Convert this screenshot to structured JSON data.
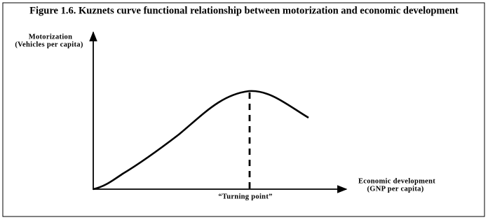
{
  "title": "Figure 1.6. Kuznets curve functional relationship between motorization and economic development",
  "y_axis": {
    "label": "Motorization",
    "sublabel": "(Vehicles per capita)"
  },
  "x_axis": {
    "label": "Economic development",
    "sublabel": "(GNP per capita)"
  },
  "annotation": "“Turning point”"
}
